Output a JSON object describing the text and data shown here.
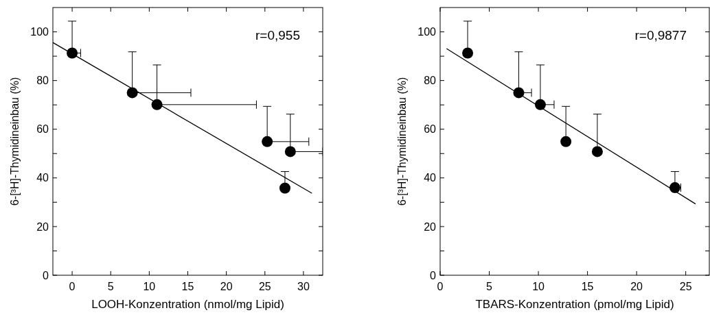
{
  "chart_data": [
    {
      "type": "scatter",
      "xlabel": "LOOH-Konzentration (nmol/mg Lipid)",
      "ylabel": "6-[³H]-Thymidineinbau (%)",
      "annotations": [
        "r=0,955"
      ],
      "xlim": [
        -2.5,
        32.5
      ],
      "xticks": [
        0,
        5,
        10,
        15,
        20,
        25,
        30
      ],
      "ylim": [
        0,
        110
      ],
      "yticks": [
        0,
        {
          "value": 10,
          "label": null
        },
        20,
        {
          "value": 30,
          "label": null
        },
        40,
        {
          "value": 50,
          "label": null
        },
        60,
        {
          "value": 70,
          "label": null
        },
        80,
        {
          "value": 90,
          "label": null
        },
        100
      ],
      "grid": false,
      "series": [
        {
          "color": "#000000",
          "marker": "circle",
          "x": [
            0,
            7.8,
            11.0,
            25.3,
            28.3,
            27.6
          ],
          "values": [
            91.3,
            75,
            70.1,
            54.9,
            50.8,
            35.8
          ],
          "errors": [
            [
              91.3,
              104.4
            ],
            [
              75,
              91.8
            ],
            [
              70.1,
              86.4
            ],
            [
              54.9,
              69.4
            ],
            [
              50.8,
              66.2
            ],
            [
              35.8,
              42.6
            ]
          ],
          "xerrors": [
            [
              0,
              1.1
            ],
            [
              7.8,
              15.4
            ],
            [
              11.0,
              23.9
            ],
            [
              25.3,
              30.7
            ],
            [
              28.3,
              32.5
            ],
            null
          ]
        },
        {
          "type": "line",
          "color": "#000000",
          "marker": "none",
          "x": [
            -2.5,
            31.1
          ],
          "values": [
            95.6,
            33.7
          ]
        }
      ]
    },
    {
      "type": "scatter",
      "xlabel": "TBARS-Konzentration (pmol/mg Lipid)",
      "ylabel": "6-[³H]-Thymidineinbau (%)",
      "annotations": [
        "r=0,9877"
      ],
      "xlim": [
        0,
        27.4
      ],
      "xticks": [
        0,
        5,
        10,
        15,
        20,
        25
      ],
      "ylim": [
        0,
        110
      ],
      "yticks": [
        0,
        {
          "value": 10,
          "label": null
        },
        20,
        {
          "value": 30,
          "label": null
        },
        40,
        {
          "value": 50,
          "label": null
        },
        60,
        {
          "value": 70,
          "label": null
        },
        80,
        {
          "value": 90,
          "label": null
        },
        100
      ],
      "grid": false,
      "series": [
        {
          "color": "#000000",
          "marker": "circle",
          "x": [
            2.8,
            8.0,
            10.2,
            12.8,
            16.0,
            23.9
          ],
          "values": [
            91.3,
            75,
            70.1,
            54.9,
            50.8,
            36.0
          ],
          "errors": [
            [
              91.3,
              104.4
            ],
            [
              75,
              91.8
            ],
            [
              70.1,
              86.4
            ],
            [
              54.9,
              69.4
            ],
            [
              50.8,
              66.2
            ],
            [
              36.0,
              42.6
            ]
          ],
          "xerrors": [
            null,
            [
              8.0,
              9.3
            ],
            [
              10.2,
              11.6
            ],
            null,
            null,
            [
              23.9,
              24.5
            ]
          ]
        },
        {
          "type": "line",
          "color": "#000000",
          "marker": "none",
          "x": [
            0.65,
            26.0
          ],
          "values": [
            93.1,
            29.3
          ]
        }
      ]
    }
  ]
}
